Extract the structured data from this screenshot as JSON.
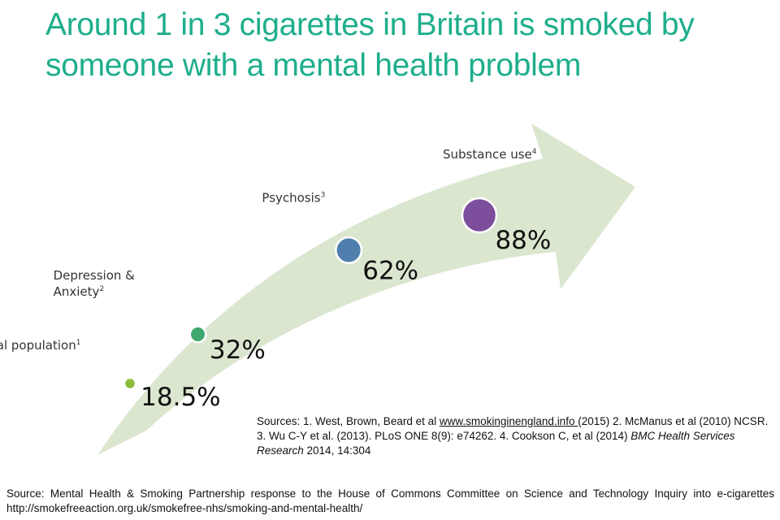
{
  "title": "Around 1 in 3 cigarettes in Britain is smoked by someone with a mental health problem",
  "chart_data": {
    "type": "scatter",
    "categories": [
      "General population",
      "Depression & Anxiety",
      "Psychosis",
      "Substance use"
    ],
    "category_lines": [
      [
        "General population"
      ],
      [
        "Depression &",
        "Anxiety"
      ],
      [
        "Psychosis"
      ],
      [
        "Substance use"
      ]
    ],
    "footnote_marks": [
      "1",
      "2",
      "3",
      "4"
    ],
    "values": [
      18.5,
      32,
      62,
      88
    ],
    "value_labels": [
      "18.5%",
      "32%",
      "62%",
      "88%"
    ],
    "colors": [
      "#8cbc3c",
      "#3fa86e",
      "#4f7fac",
      "#7d4e9c"
    ],
    "arrow_color": "#dbe6cf"
  },
  "sources": {
    "part1": "Sources: 1. West, Brown, Beard et al ",
    "link": "www.smokinginengland.info ",
    "part2": " (2015) 2. McManus et al (2010) NCSR. 3. Wu C-Y et al. (2013). PLoS ONE 8(9): e74262. 4. Cookson C, et al (2014) ",
    "journal": "BMC Health Services Research",
    "part3": " 2014, 14:304"
  },
  "footer": "Source: Mental Health & Smoking Partnership response to the House of Commons Committee on Science and Technology Inquiry into e-cigarettes http://smokefreeaction.org.uk/smokefree-nhs/smoking-and-mental-health/"
}
